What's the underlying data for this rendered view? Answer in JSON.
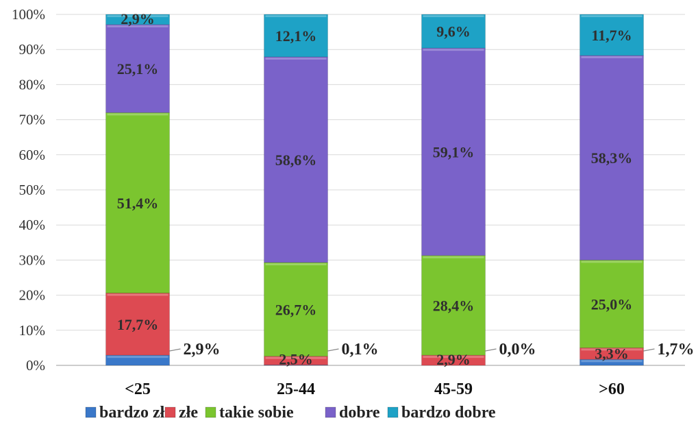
{
  "chart_data": {
    "type": "bar",
    "stacked": true,
    "percent": true,
    "categories": [
      "<25",
      "25-44",
      "45-59",
      ">60"
    ],
    "ylim": [
      0,
      100
    ],
    "yticks": [
      "0%",
      "10%",
      "20%",
      "30%",
      "40%",
      "50%",
      "60%",
      "70%",
      "80%",
      "90%",
      "100%"
    ],
    "grid": true,
    "legend_position": "bottom",
    "series": [
      {
        "name": "bardzo złe",
        "color": "#3a78c9",
        "values": [
          2.9,
          0.1,
          0.0,
          1.7
        ],
        "labels": [
          "2,9%",
          "0,1%",
          "0,0%",
          "1,7%"
        ]
      },
      {
        "name": "złe",
        "color": "#dd4a52",
        "values": [
          17.7,
          2.5,
          2.9,
          3.3
        ],
        "labels": [
          "17,7%",
          "2,5%",
          "2,9%",
          "3,3%"
        ]
      },
      {
        "name": "takie sobie",
        "color": "#7bc52f",
        "values": [
          51.4,
          26.7,
          28.4,
          25.0
        ],
        "labels": [
          "51,4%",
          "26,7%",
          "28,4%",
          "25,0%"
        ]
      },
      {
        "name": "dobre",
        "color": "#7a62c9",
        "values": [
          25.1,
          58.6,
          59.1,
          58.3
        ],
        "labels": [
          "25,1%",
          "58,6%",
          "59,1%",
          "58,3%"
        ]
      },
      {
        "name": "bardzo dobre",
        "color": "#1ea2c6",
        "values": [
          2.9,
          12.1,
          9.6,
          11.7
        ],
        "labels": [
          "2,9%",
          "12,1%",
          "9,6%",
          "11,7%"
        ]
      }
    ]
  }
}
